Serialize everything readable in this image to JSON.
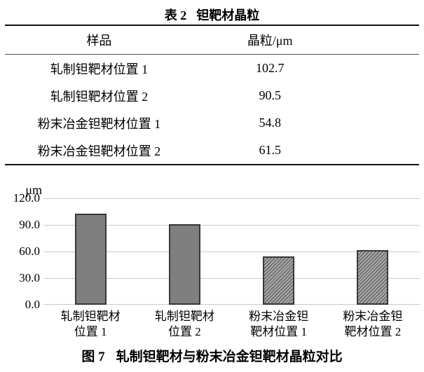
{
  "table": {
    "title_prefix": "表 2",
    "title": "钽靶材晶粒",
    "columns": [
      "样品",
      "晶粒/μm"
    ],
    "rows": [
      {
        "sample": "轧制钽靶材位置 1",
        "grain": "102.7"
      },
      {
        "sample": "轧制钽靶材位置 2",
        "grain": "90.5"
      },
      {
        "sample": "粉末冶金钽靶材位置 1",
        "grain": "54.8"
      },
      {
        "sample": "粉末冶金钽靶材位置 2",
        "grain": "61.5"
      }
    ]
  },
  "chart_data": {
    "type": "bar",
    "title_prefix": "图 7",
    "title": "轧制钽靶材与粉末冶金钽靶材晶粒对比",
    "ylabel": "μm",
    "ylim": [
      0,
      120
    ],
    "yticks": [
      "120.0",
      "90.0",
      "60.0",
      "30.0",
      "0.0"
    ],
    "grid": true,
    "legend": "none",
    "categories": [
      "轧制钽靶材位置 1",
      "轧制钽靶材位置 2",
      "粉末冶金钽靶材位置 1",
      "粉末冶金钽靶材位置 2"
    ],
    "category_lines": [
      [
        "轧制钽靶材",
        "位置 1"
      ],
      [
        "轧制钽靶材",
        "位置 2"
      ],
      [
        "粉末冶金钽",
        "靶材位置 1"
      ],
      [
        "粉末冶金钽",
        "靶材位置 2"
      ]
    ],
    "values": [
      102.7,
      90.5,
      54.8,
      61.5
    ],
    "bar_styles": [
      "solid",
      "solid",
      "hatched",
      "hatched"
    ],
    "colors": {
      "solid_fill": "#7f7f7f",
      "bar_border": "#383838",
      "hatch_dark": "#565656",
      "hatch_light": "#a5a5a5",
      "gridline": "#c9c9c9"
    }
  }
}
